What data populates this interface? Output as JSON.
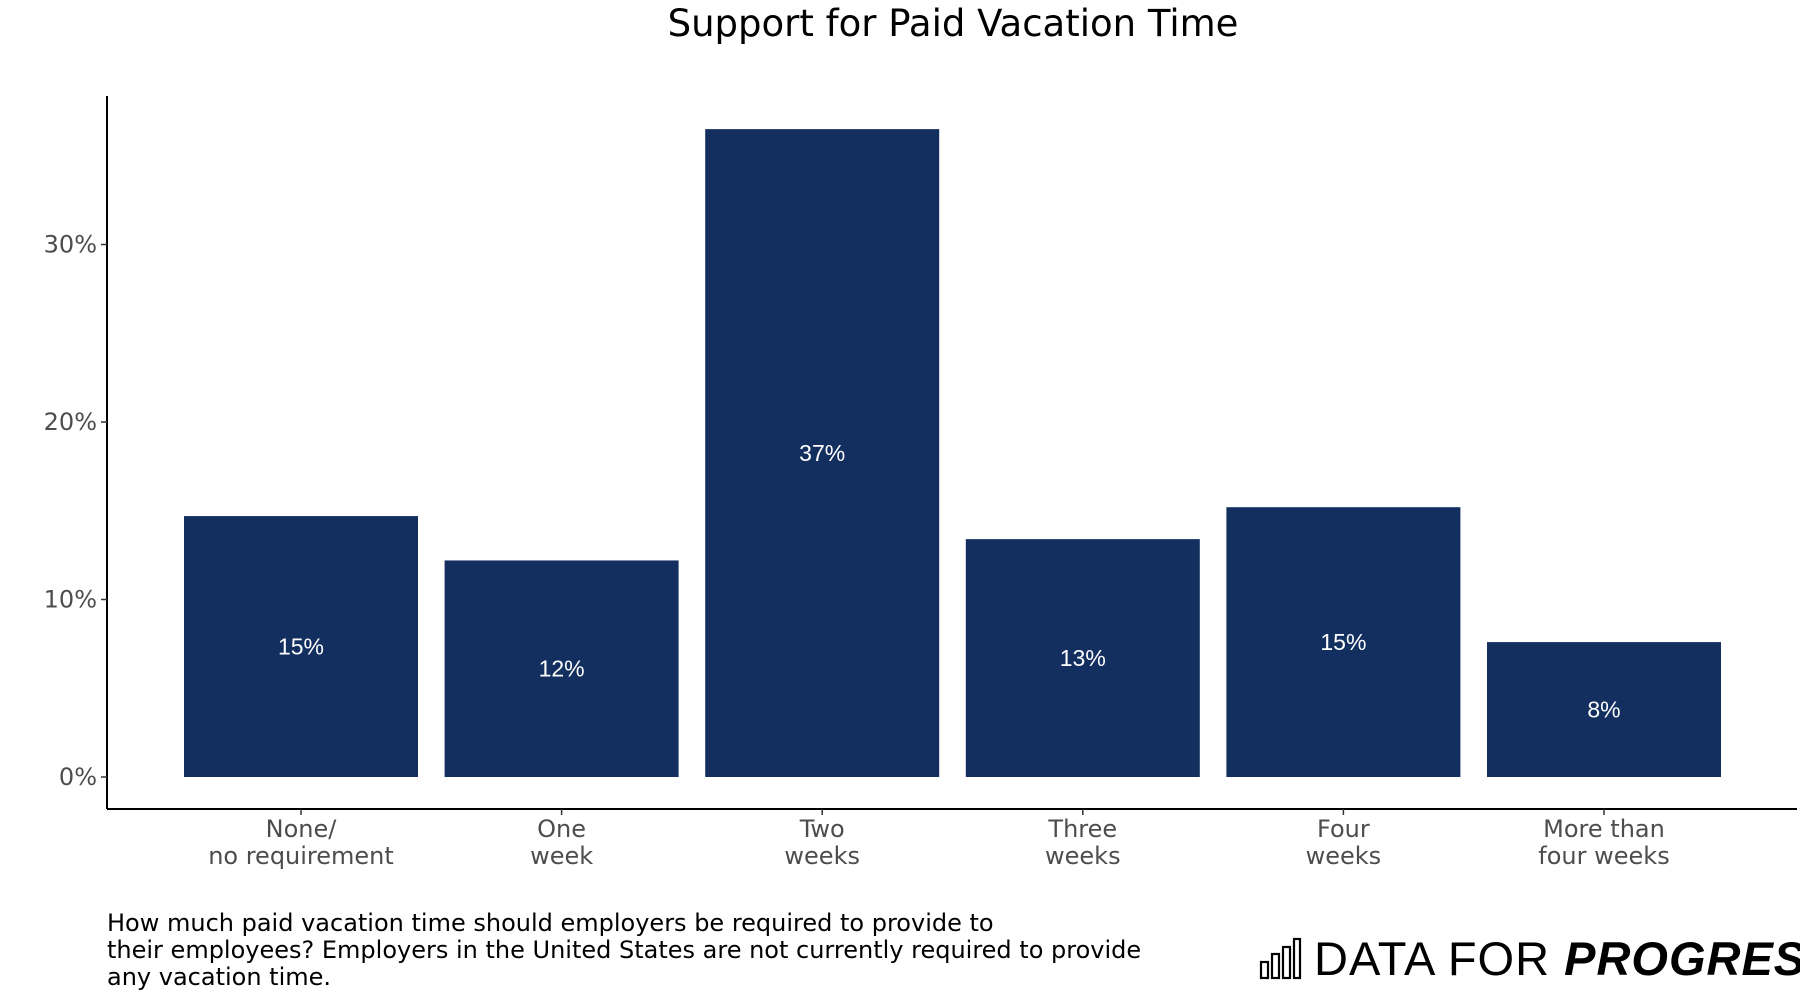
{
  "chart_data": {
    "type": "bar",
    "title": "Support for Paid Vacation Time",
    "categories": [
      [
        "None/",
        "no requirement"
      ],
      [
        "One",
        "week"
      ],
      [
        "Two",
        "weeks"
      ],
      [
        "Three",
        "weeks"
      ],
      [
        "Four",
        "weeks"
      ],
      [
        "More than",
        "four weeks"
      ]
    ],
    "values": [
      14.7,
      12.2,
      36.5,
      13.4,
      15.2,
      7.6
    ],
    "data_labels": [
      "15%",
      "12%",
      "37%",
      "13%",
      "15%",
      "8%"
    ],
    "yticks": [
      0,
      10,
      20,
      30
    ],
    "ytick_labels": [
      "0%",
      "10%",
      "20%",
      "30%"
    ],
    "ylim": [
      0,
      38
    ],
    "xlabel": "",
    "ylabel": "",
    "bar_color": "#132f5f",
    "grid": false,
    "legend": "none"
  },
  "caption": [
    "How much paid vacation time should employers be required to provide to",
    "their employees? Employers in the United States are not currently required to provide",
    "any vacation time."
  ],
  "brand": {
    "light": "DATA FOR ",
    "bold": "PROGRESS",
    "icon": "bar-chart-icon"
  }
}
